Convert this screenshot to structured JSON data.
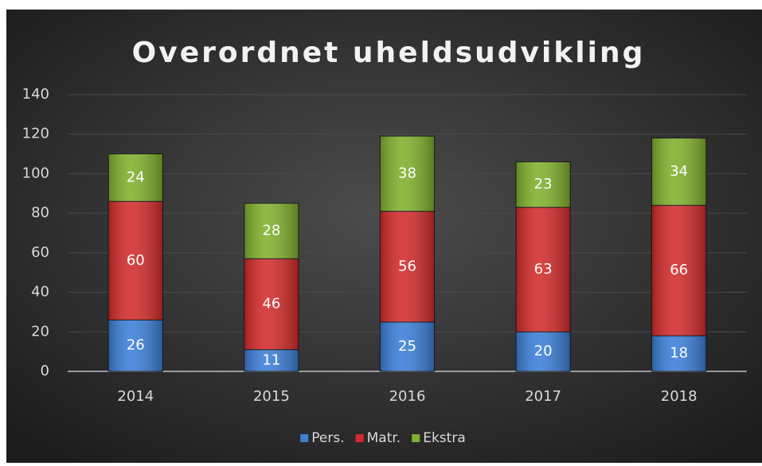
{
  "chart_data": {
    "type": "stacked_bar",
    "title": "Overordnet uheldsudvikling",
    "categories": [
      "2014",
      "2015",
      "2016",
      "2017",
      "2018"
    ],
    "series": [
      {
        "name": "Pers.",
        "color": "#3b7fd9",
        "values": [
          26,
          11,
          25,
          20,
          18
        ]
      },
      {
        "name": "Matr.",
        "color": "#d42a2a",
        "values": [
          60,
          46,
          56,
          63,
          66
        ]
      },
      {
        "name": "Ekstra",
        "color": "#80b12c",
        "values": [
          24,
          28,
          38,
          23,
          34
        ]
      }
    ],
    "ylim": [
      0,
      140
    ],
    "yticks": [
      0,
      20,
      40,
      60,
      80,
      100,
      120,
      140
    ],
    "grid": true,
    "legend": "bottom"
  }
}
